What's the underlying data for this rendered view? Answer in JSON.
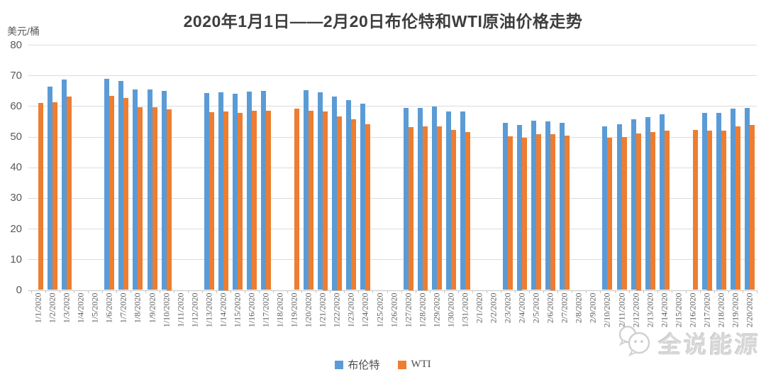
{
  "chart": {
    "title": "2020年1月1日——2月20日布伦特和WTI原油价格走势",
    "unit": "美元/桶",
    "series_names": [
      "布伦特",
      "WTI"
    ],
    "colors": {
      "brent": "#5B9BD5",
      "wti": "#ED7D31",
      "gridline": "#DCDCDC",
      "axis_text": "#595959"
    }
  },
  "watermark": {
    "text": "全说能源",
    "icon": "chat-bubbles-icon"
  },
  "chart_data": {
    "type": "bar",
    "title": "2020年1月1日——2月20日布伦特和WTI原油价格走势",
    "xlabel": "",
    "ylabel": "美元/桶",
    "ylim": [
      0,
      80
    ],
    "ytick_interval": 10,
    "grid": true,
    "legend_position": "bottom",
    "categories": [
      "1/1/2020",
      "1/2/2020",
      "1/3/2020",
      "1/4/2020",
      "1/5/2020",
      "1/6/2020",
      "1/7/2020",
      "1/8/2020",
      "1/9/2020",
      "1/10/2020",
      "1/11/2020",
      "1/12/2020",
      "1/13/2020",
      "1/14/2020",
      "1/15/2020",
      "1/16/2020",
      "1/17/2020",
      "1/18/2020",
      "1/19/2020",
      "1/20/2020",
      "1/21/2020",
      "1/22/2020",
      "1/23/2020",
      "1/24/2020",
      "1/25/2020",
      "1/26/2020",
      "1/27/2020",
      "1/28/2020",
      "1/29/2020",
      "1/30/2020",
      "1/31/2020",
      "2/1/2020",
      "2/2/2020",
      "2/3/2020",
      "2/4/2020",
      "2/5/2020",
      "2/6/2020",
      "2/7/2020",
      "2/8/2020",
      "2/9/2020",
      "2/10/2020",
      "2/11/2020",
      "2/12/2020",
      "2/13/2020",
      "2/14/2020",
      "2/15/2020",
      "2/16/2020",
      "2/17/2020",
      "2/18/2020",
      "2/19/2020",
      "2/20/2020"
    ],
    "series": [
      {
        "name": "布伦特",
        "color": "#5B9BD5",
        "values": [
          null,
          66.25,
          68.6,
          null,
          null,
          68.91,
          68.27,
          65.44,
          65.37,
          64.98,
          null,
          null,
          64.2,
          64.49,
          64.0,
          64.62,
          64.85,
          null,
          null,
          65.2,
          64.59,
          63.21,
          62.04,
          60.69,
          null,
          null,
          59.32,
          59.51,
          59.81,
          58.29,
          58.16,
          null,
          null,
          54.45,
          53.96,
          55.28,
          54.93,
          54.47,
          null,
          null,
          53.27,
          54.01,
          55.79,
          56.34,
          57.32,
          null,
          null,
          57.67,
          57.75,
          59.12,
          59.31
        ]
      },
      {
        "name": "WTI",
        "color": "#ED7D31",
        "values": [
          61.06,
          61.18,
          63.05,
          null,
          null,
          63.27,
          62.7,
          59.61,
          59.56,
          59.04,
          null,
          null,
          58.08,
          58.23,
          57.81,
          58.52,
          58.54,
          null,
          59.2,
          58.54,
          58.34,
          56.74,
          55.59,
          54.19,
          null,
          null,
          53.14,
          53.48,
          53.33,
          52.14,
          51.56,
          null,
          null,
          50.11,
          49.61,
          50.75,
          50.95,
          50.32,
          null,
          null,
          49.57,
          49.94,
          51.17,
          51.42,
          52.05,
          null,
          52.3,
          52.1,
          52.05,
          53.29,
          53.78
        ]
      }
    ]
  }
}
